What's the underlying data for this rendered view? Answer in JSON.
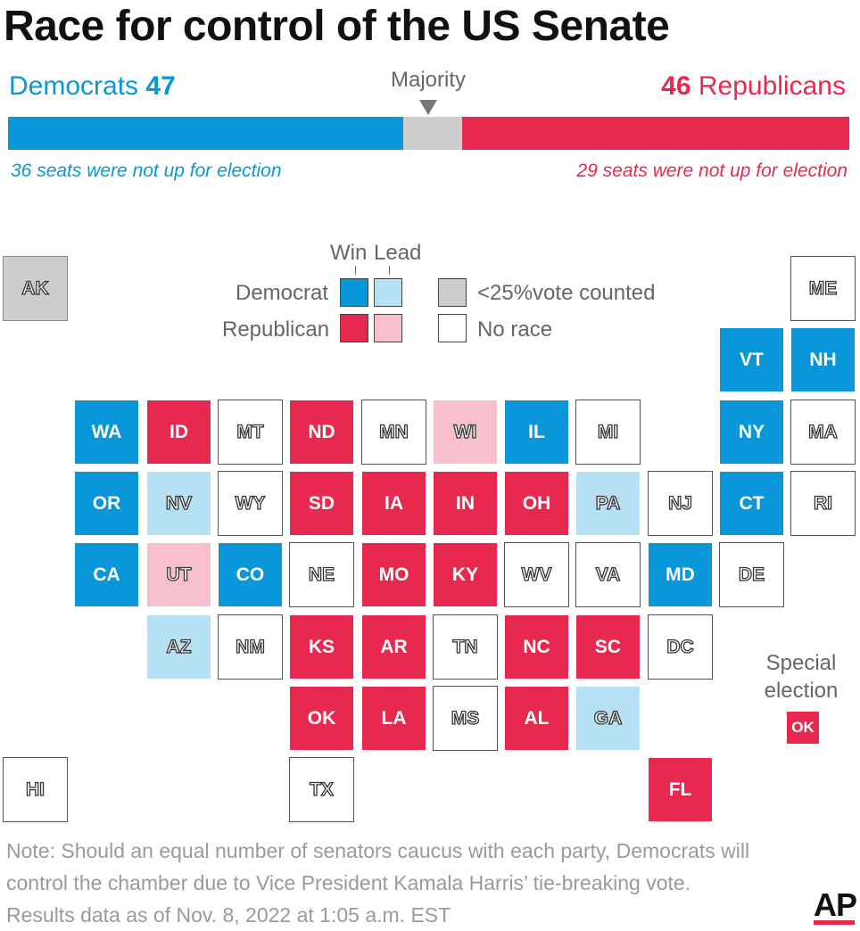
{
  "title": "Race for control of the US Senate",
  "democrats": {
    "label": "Democrats",
    "count": "47",
    "note": "36 seats were not up for election",
    "seats": 47
  },
  "republicans": {
    "label": "Republicans",
    "count": "46",
    "note": "29 seats were not up for election",
    "seats": 46
  },
  "majority_label": "Majority",
  "total_seats": 100,
  "colors": {
    "dem_win": "#0a97d9",
    "dem_lead": "#b6e0f3",
    "rep_win": "#e8294f",
    "rep_lead": "#f8bfcd",
    "under_25": "#cdcdce",
    "no_race": "#ffffff"
  },
  "legend": {
    "win": "Win",
    "lead": "Lead",
    "democrat": "Democrat",
    "republican": "Republican",
    "under_25": "<25%vote counted",
    "no_race": "No race"
  },
  "special": {
    "label_line1": "Special",
    "label_line2": "election",
    "state": "OK",
    "status": "rw"
  },
  "states": [
    {
      "abbr": "AK",
      "status": "gr",
      "col": 0,
      "row": 0
    },
    {
      "abbr": "ME",
      "status": "nr",
      "col": 11,
      "row": 0
    },
    {
      "abbr": "VT",
      "status": "dw",
      "col": 10,
      "row": 1
    },
    {
      "abbr": "NH",
      "status": "dw",
      "col": 11,
      "row": 1
    },
    {
      "abbr": "WA",
      "status": "dw",
      "col": 1,
      "row": 2
    },
    {
      "abbr": "ID",
      "status": "rw",
      "col": 2,
      "row": 2
    },
    {
      "abbr": "MT",
      "status": "nr",
      "col": 3,
      "row": 2
    },
    {
      "abbr": "ND",
      "status": "rw",
      "col": 4,
      "row": 2
    },
    {
      "abbr": "MN",
      "status": "nr",
      "col": 5,
      "row": 2
    },
    {
      "abbr": "WI",
      "status": "rl",
      "col": 6,
      "row": 2
    },
    {
      "abbr": "IL",
      "status": "dw",
      "col": 7,
      "row": 2
    },
    {
      "abbr": "MI",
      "status": "nr",
      "col": 8,
      "row": 2
    },
    {
      "abbr": "NY",
      "status": "dw",
      "col": 10,
      "row": 2
    },
    {
      "abbr": "MA",
      "status": "nr",
      "col": 11,
      "row": 2
    },
    {
      "abbr": "OR",
      "status": "dw",
      "col": 1,
      "row": 3
    },
    {
      "abbr": "NV",
      "status": "dl",
      "col": 2,
      "row": 3
    },
    {
      "abbr": "WY",
      "status": "nr",
      "col": 3,
      "row": 3
    },
    {
      "abbr": "SD",
      "status": "rw",
      "col": 4,
      "row": 3
    },
    {
      "abbr": "IA",
      "status": "rw",
      "col": 5,
      "row": 3
    },
    {
      "abbr": "IN",
      "status": "rw",
      "col": 6,
      "row": 3
    },
    {
      "abbr": "OH",
      "status": "rw",
      "col": 7,
      "row": 3
    },
    {
      "abbr": "PA",
      "status": "dl",
      "col": 8,
      "row": 3
    },
    {
      "abbr": "NJ",
      "status": "nr",
      "col": 9,
      "row": 3
    },
    {
      "abbr": "CT",
      "status": "dw",
      "col": 10,
      "row": 3
    },
    {
      "abbr": "RI",
      "status": "nr",
      "col": 11,
      "row": 3
    },
    {
      "abbr": "CA",
      "status": "dw",
      "col": 1,
      "row": 4
    },
    {
      "abbr": "UT",
      "status": "rl",
      "col": 2,
      "row": 4
    },
    {
      "abbr": "CO",
      "status": "dw",
      "col": 3,
      "row": 4
    },
    {
      "abbr": "NE",
      "status": "nr",
      "col": 4,
      "row": 4
    },
    {
      "abbr": "MO",
      "status": "rw",
      "col": 5,
      "row": 4
    },
    {
      "abbr": "KY",
      "status": "rw",
      "col": 6,
      "row": 4
    },
    {
      "abbr": "WV",
      "status": "nr",
      "col": 7,
      "row": 4
    },
    {
      "abbr": "VA",
      "status": "nr",
      "col": 8,
      "row": 4
    },
    {
      "abbr": "MD",
      "status": "dw",
      "col": 9,
      "row": 4
    },
    {
      "abbr": "DE",
      "status": "nr",
      "col": 10,
      "row": 4
    },
    {
      "abbr": "AZ",
      "status": "dl",
      "col": 2,
      "row": 5
    },
    {
      "abbr": "NM",
      "status": "nr",
      "col": 3,
      "row": 5
    },
    {
      "abbr": "KS",
      "status": "rw",
      "col": 4,
      "row": 5
    },
    {
      "abbr": "AR",
      "status": "rw",
      "col": 5,
      "row": 5
    },
    {
      "abbr": "TN",
      "status": "nr",
      "col": 6,
      "row": 5
    },
    {
      "abbr": "NC",
      "status": "rw",
      "col": 7,
      "row": 5
    },
    {
      "abbr": "SC",
      "status": "rw",
      "col": 8,
      "row": 5
    },
    {
      "abbr": "DC",
      "status": "nr",
      "col": 9,
      "row": 5
    },
    {
      "abbr": "OK",
      "status": "rw",
      "col": 4,
      "row": 6
    },
    {
      "abbr": "LA",
      "status": "rw",
      "col": 5,
      "row": 6
    },
    {
      "abbr": "MS",
      "status": "nr",
      "col": 6,
      "row": 6
    },
    {
      "abbr": "AL",
      "status": "rw",
      "col": 7,
      "row": 6
    },
    {
      "abbr": "GA",
      "status": "dl",
      "col": 8,
      "row": 6
    },
    {
      "abbr": "HI",
      "status": "nr",
      "col": 0,
      "row": 7
    },
    {
      "abbr": "TX",
      "status": "nr",
      "col": 4,
      "row": 7
    },
    {
      "abbr": "FL",
      "status": "rw",
      "col": 9,
      "row": 7
    }
  ],
  "footnote": {
    "line1": "Note: Should an equal number of senators caucus with each party, Democrats will",
    "line2": "control the chamber due to Vice President Kamala Harris’ tie-breaking vote.",
    "line3": "Results data as of Nov. 8, 2022 at 1:05 a.m. EST"
  },
  "logo": "AP"
}
